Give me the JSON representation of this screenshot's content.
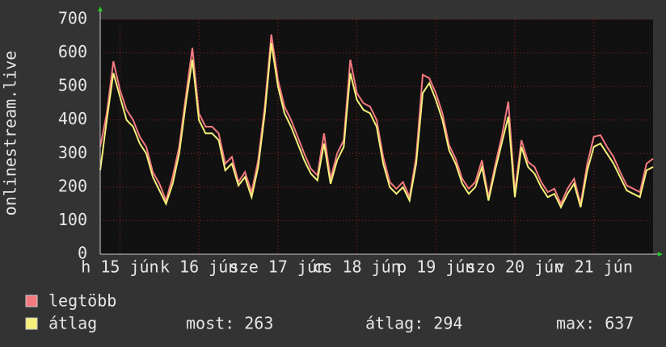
{
  "chart_data": {
    "type": "line",
    "y_label": "onlinestream.live",
    "x": [
      0,
      2,
      4,
      6,
      8,
      10,
      12,
      14,
      16,
      18,
      20,
      22,
      24,
      26,
      28,
      30,
      32,
      34,
      36,
      38,
      40,
      42,
      44,
      46,
      48,
      50,
      52,
      54,
      56,
      58,
      60,
      62,
      64,
      66,
      68,
      70,
      72,
      74,
      76,
      78,
      80,
      82,
      84,
      86,
      88,
      90,
      92,
      94,
      96,
      98,
      100,
      102,
      104,
      106,
      108,
      110,
      112,
      114,
      116,
      118,
      120,
      122,
      124,
      126,
      128,
      130,
      132,
      134,
      136,
      138,
      140,
      142,
      144,
      146,
      148,
      150,
      152,
      154,
      156,
      158,
      160,
      162,
      164,
      166,
      168
    ],
    "xlim": [
      0,
      168
    ],
    "xticks": [
      {
        "value": 6,
        "label": "h 15 jún"
      },
      {
        "value": 30,
        "label": "k 16 jún"
      },
      {
        "value": 54,
        "label": "sze 17 jún"
      },
      {
        "value": 78,
        "label": "cs 18 jún"
      },
      {
        "value": 102,
        "label": "p 19 jún"
      },
      {
        "value": 126,
        "label": "szo 20 jún"
      },
      {
        "value": 150,
        "label": "v 21 jún"
      }
    ],
    "ylim": [
      0,
      700
    ],
    "yticks": [
      0,
      100,
      200,
      300,
      400,
      500,
      600,
      700
    ],
    "grid": true,
    "series": [
      {
        "name": "legtöbb",
        "color": "#f47a80",
        "values": [
          320,
          420,
          575,
          490,
          430,
          400,
          350,
          320,
          245,
          210,
          160,
          230,
          320,
          470,
          615,
          420,
          380,
          380,
          360,
          270,
          290,
          215,
          245,
          185,
          280,
          440,
          655,
          520,
          440,
          400,
          350,
          300,
          255,
          235,
          360,
          225,
          300,
          340,
          580,
          480,
          450,
          440,
          400,
          290,
          215,
          195,
          215,
          170,
          290,
          535,
          525,
          480,
          420,
          325,
          285,
          225,
          195,
          215,
          280,
          170,
          265,
          350,
          455,
          185,
          340,
          275,
          260,
          215,
          185,
          195,
          150,
          195,
          225,
          150,
          270,
          350,
          355,
          320,
          290,
          245,
          205,
          195,
          185,
          270,
          285
        ]
      },
      {
        "name": "átlag",
        "color": "#f4f07a",
        "values": [
          250,
          400,
          540,
          470,
          400,
          380,
          330,
          300,
          230,
          190,
          150,
          210,
          300,
          450,
          580,
          400,
          360,
          360,
          340,
          250,
          270,
          205,
          230,
          170,
          260,
          420,
          630,
          500,
          420,
          380,
          330,
          280,
          240,
          220,
          330,
          210,
          280,
          320,
          540,
          460,
          430,
          420,
          380,
          270,
          200,
          180,
          200,
          160,
          270,
          480,
          510,
          460,
          400,
          310,
          270,
          210,
          180,
          200,
          260,
          160,
          250,
          330,
          410,
          170,
          320,
          260,
          240,
          200,
          170,
          180,
          140,
          180,
          210,
          140,
          250,
          320,
          330,
          300,
          270,
          230,
          190,
          180,
          170,
          250,
          260
        ]
      }
    ],
    "legend_stats": [
      "most: 263",
      "átlag: 294",
      "max: 637"
    ]
  }
}
